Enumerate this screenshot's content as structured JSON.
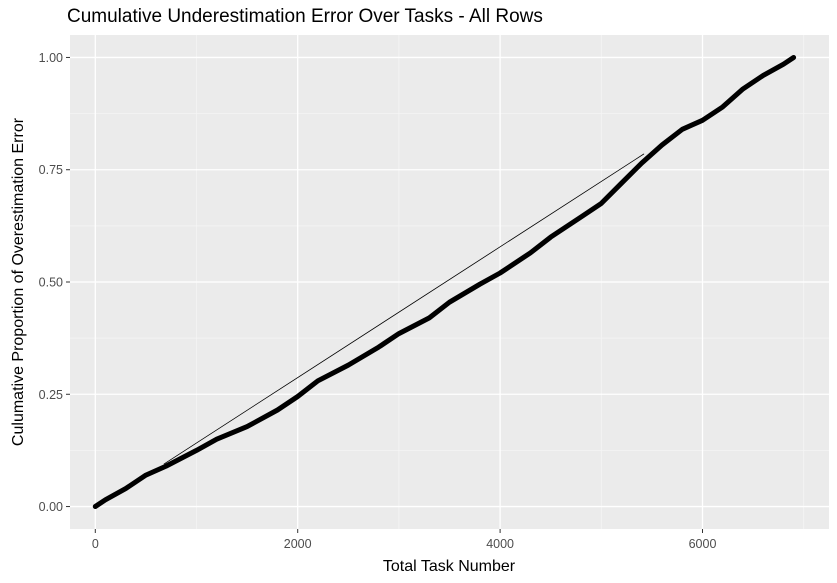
{
  "chart_data": {
    "type": "line",
    "title": "Cumulative Underestimation Error Over Tasks - All Rows",
    "xlabel": "Total Task Number",
    "ylabel": "Culumative Proportion of Overestimation Error",
    "xlim": [
      -250,
      7250
    ],
    "ylim": [
      -0.05,
      1.05
    ],
    "x_ticks": [
      0,
      2000,
      4000,
      6000
    ],
    "x_tick_labels": [
      "0",
      "2000",
      "4000",
      "6000"
    ],
    "y_ticks": [
      0,
      0.25,
      0.5,
      0.75,
      1
    ],
    "y_tick_labels": [
      "0.00",
      "0.25",
      "0.50",
      "0.75",
      "1.00"
    ],
    "grid": true,
    "series": [
      {
        "style": "thick-line",
        "x": [
          0,
          100,
          300,
          500,
          700,
          1000,
          1200,
          1500,
          1800,
          2000,
          2200,
          2500,
          2800,
          3000,
          3300,
          3500,
          3800,
          4000,
          4300,
          4500,
          4800,
          5000,
          5200,
          5400,
          5600,
          5800,
          6000,
          6200,
          6400,
          6600,
          6800,
          6900
        ],
        "y": [
          0.0,
          0.015,
          0.04,
          0.07,
          0.09,
          0.125,
          0.15,
          0.178,
          0.215,
          0.245,
          0.28,
          0.315,
          0.355,
          0.385,
          0.42,
          0.455,
          0.495,
          0.52,
          0.565,
          0.6,
          0.645,
          0.675,
          0.72,
          0.765,
          0.805,
          0.84,
          0.86,
          0.89,
          0.93,
          0.96,
          0.985,
          1.0
        ]
      },
      {
        "style": "thin-line",
        "x": [
          680,
          5420
        ],
        "y": [
          0.095,
          0.785
        ]
      }
    ]
  },
  "colors": {
    "panel": "#ebebeb",
    "grid_major": "#ffffff",
    "grid_minor": "#f5f5f5",
    "line": "#000000",
    "tick_text": "#4d4d4d"
  }
}
